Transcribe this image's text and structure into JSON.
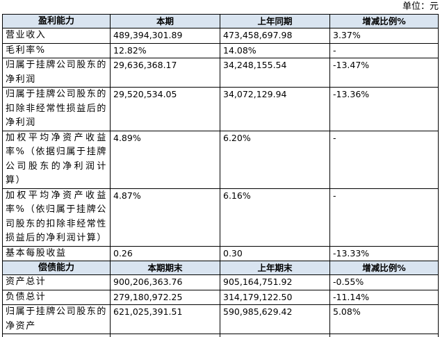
{
  "unit": "单位：元",
  "sections": [
    {
      "header": [
        "盈利能力",
        "本期",
        "上年同期",
        "增减比例%"
      ],
      "rows": [
        [
          "营业收入",
          "489,394,301.89",
          "473,458,697.98",
          "3.37%"
        ],
        [
          "毛利率%",
          "12.82%",
          "14.08%",
          "-"
        ],
        [
          "归属于挂牌公司股东的净利润",
          "29,636,368.17",
          "34,248,155.54",
          "-13.47%"
        ],
        [
          "归属于挂牌公司股东的扣除非经常性损益后的净利润",
          "29,520,534.05",
          "34,072,129.94",
          "-13.36%"
        ],
        [
          "加权平均净资产收益率%（依据归属于挂牌公司股东的净利润计算）",
          "4.89%",
          "6.20%",
          "-"
        ],
        [
          "加权平均净资产收益率%（依归属于挂牌公司股东的扣除非经常性损益后的净利润计算）",
          "4.87%",
          "6.16%",
          "-"
        ],
        [
          "基本每股收益",
          "0.26",
          "0.30",
          "-13.33%"
        ]
      ]
    },
    {
      "header": [
        "偿债能力",
        "本期期末",
        "上年期末",
        "增减比例%"
      ],
      "rows": [
        [
          "资产总计",
          "900,206,363.76",
          "905,164,751.92",
          "-0.55%"
        ],
        [
          "负债总计",
          "279,180,972.25",
          "314,179,122.50",
          "-11.14%"
        ],
        [
          "归属于挂牌公司股东的净资产",
          "621,025,391.51",
          "590,985,629.42",
          "5.08%"
        ]
      ]
    }
  ]
}
